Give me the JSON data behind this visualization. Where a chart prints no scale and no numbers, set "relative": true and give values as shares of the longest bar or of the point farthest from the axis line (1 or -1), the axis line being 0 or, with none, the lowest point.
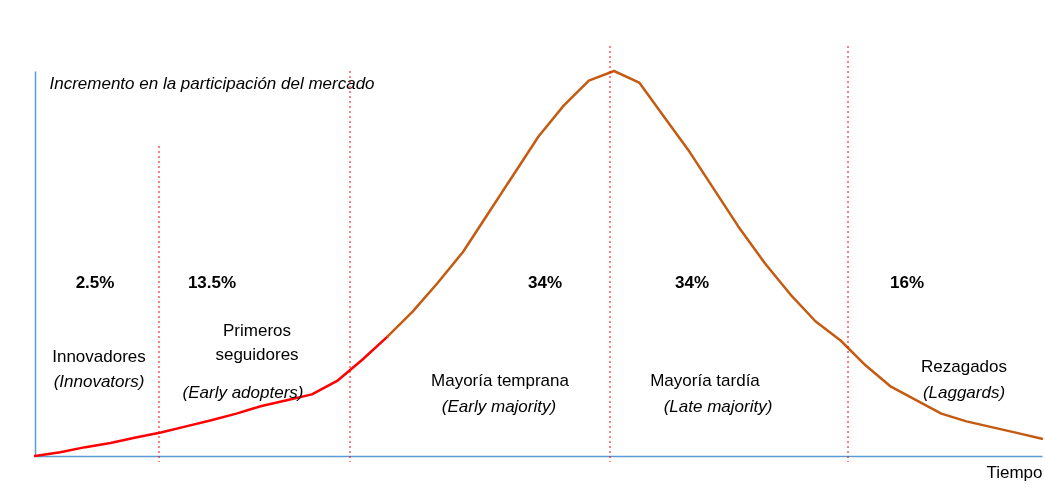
{
  "chart_data": {
    "type": "line",
    "relative": true,
    "xlabel": "Tiempo",
    "ylabel": "Incremento en la participación del mercado",
    "categories": [
      null,
      null,
      null,
      null,
      null,
      null,
      null,
      null,
      null,
      null,
      null,
      null,
      null,
      null,
      null,
      null,
      null,
      null,
      null,
      null,
      null,
      null,
      null,
      null,
      null,
      null,
      null,
      null,
      null,
      null,
      null,
      null,
      null,
      null,
      null,
      null,
      null,
      null,
      null,
      null,
      null
    ],
    "series": [
      {
        "color": "#ff0000",
        "values": [
          0,
          0.01,
          0.023,
          0.034,
          0.048,
          0.061,
          0.077,
          0.093,
          0.11,
          0.13,
          0.145,
          0.16,
          0.195,
          0.25,
          0.31,
          null,
          null,
          null,
          null,
          null,
          null,
          null,
          null,
          null,
          null,
          null,
          null,
          null,
          null,
          null,
          null,
          null,
          null,
          null,
          null,
          null,
          null,
          null,
          null,
          null,
          null
        ]
      },
      {
        "color": "#c55a11",
        "values": [
          null,
          null,
          null,
          null,
          null,
          null,
          null,
          null,
          null,
          null,
          null,
          null,
          null,
          null,
          0.31,
          0.375,
          0.45,
          0.53,
          0.63,
          0.73,
          0.83,
          0.91,
          0.975,
          1,
          0.97,
          0.88,
          0.79,
          0.69,
          0.59,
          0.5,
          0.42,
          0.35,
          0.3,
          0.235,
          0.18,
          0.145,
          0.11,
          0.09,
          0.075,
          0.06,
          0.045
        ]
      }
    ],
    "annotations": [
      "2.5%",
      "13.5%",
      "34%",
      "34%",
      "16%",
      "Innovadores",
      "Primeros\nseguidores",
      "Mayoría temprana",
      "Mayoría tardía",
      "Rezagados",
      "(Innovators)",
      "(Early adopters)",
      "(Early majority)",
      "(Late majority)",
      "(Laggards)"
    ]
  }
}
